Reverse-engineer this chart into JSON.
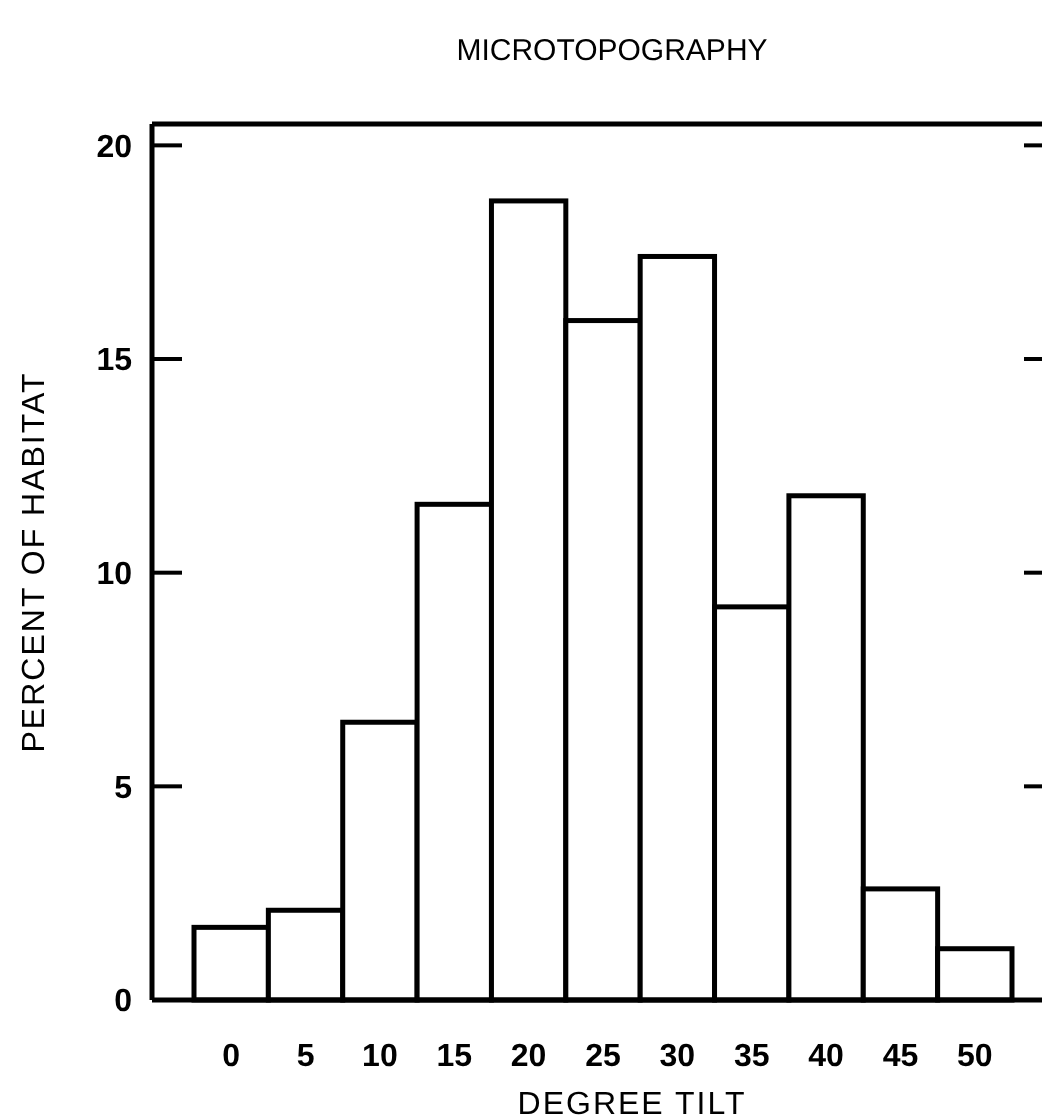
{
  "chart_data": {
    "type": "bar",
    "title": "MICROTOPOGRAPHY",
    "xlabel": "DEGREE TILT",
    "ylabel": "PERCENT OF HABITAT",
    "categories": [
      "0",
      "5",
      "10",
      "15",
      "20",
      "25",
      "30",
      "35",
      "40",
      "45",
      "50"
    ],
    "values": [
      1.7,
      2.1,
      6.5,
      11.6,
      18.7,
      15.9,
      17.4,
      9.2,
      11.8,
      2.6,
      1.2
    ],
    "color": "#ffffff",
    "ylim": [
      0,
      20.5
    ],
    "yticks": [
      0,
      5,
      10,
      15,
      20
    ],
    "grid": false
  }
}
